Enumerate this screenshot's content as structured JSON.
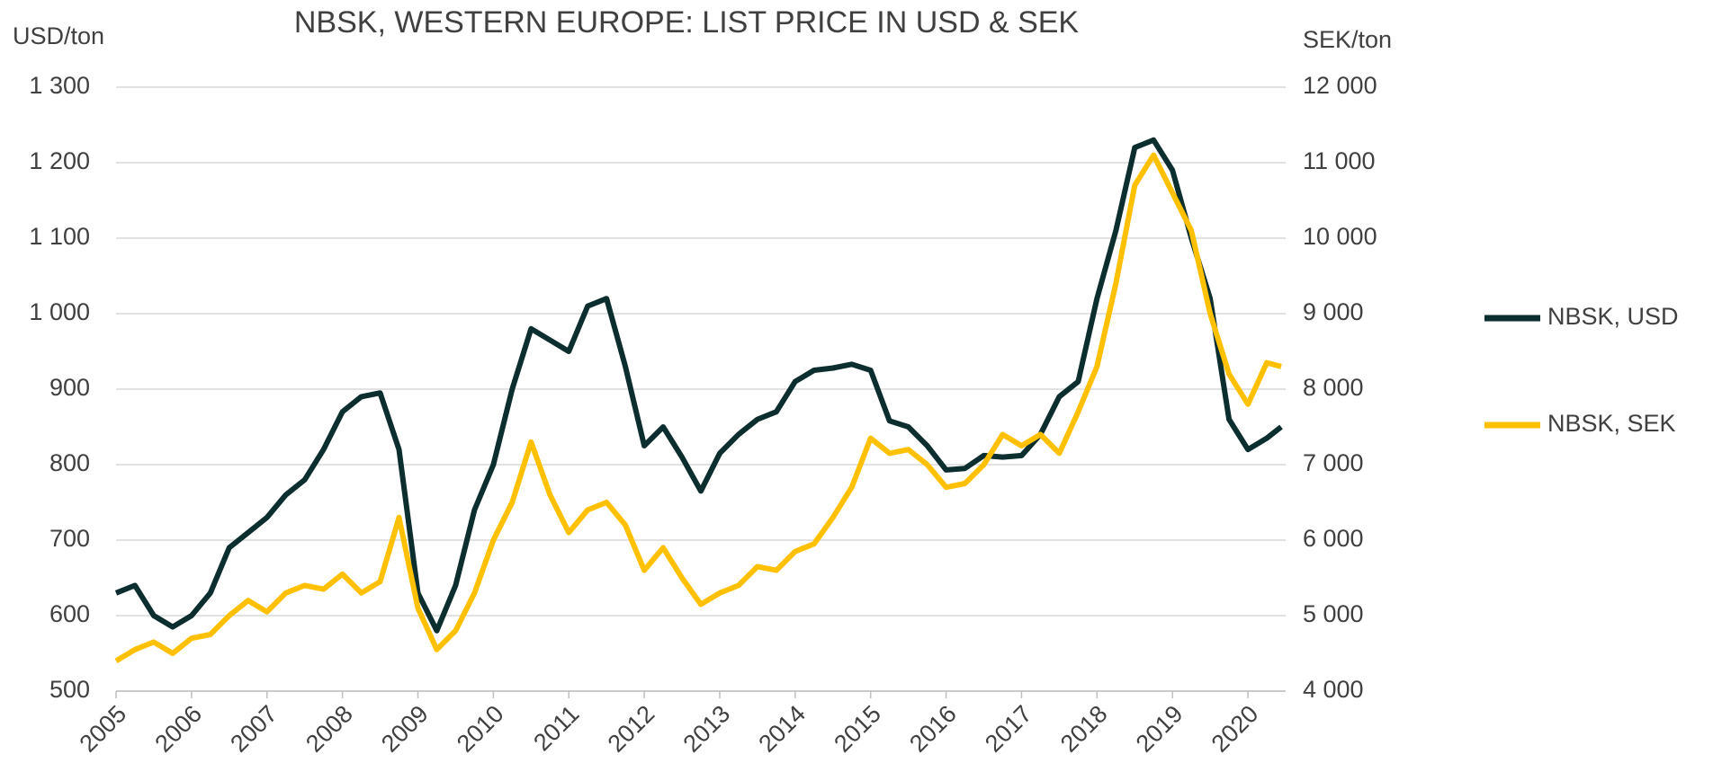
{
  "chart_data": {
    "type": "line",
    "title": "NBSK, WESTERN EUROPE: LIST PRICE IN USD & SEK",
    "y_label": "USD/ton",
    "y2_label": "SEK/ton",
    "x": [
      2005,
      2005.25,
      2005.5,
      2005.75,
      2006,
      2006.25,
      2006.5,
      2006.75,
      2007,
      2007.25,
      2007.5,
      2007.75,
      2008,
      2008.25,
      2008.5,
      2008.75,
      2009,
      2009.25,
      2009.5,
      2009.75,
      2010,
      2010.25,
      2010.5,
      2010.75,
      2011,
      2011.25,
      2011.5,
      2011.75,
      2012,
      2012.25,
      2012.5,
      2012.75,
      2013,
      2013.25,
      2013.5,
      2013.75,
      2014,
      2014.25,
      2014.5,
      2014.75,
      2015,
      2015.25,
      2015.5,
      2015.75,
      2016,
      2016.25,
      2016.5,
      2016.75,
      2017,
      2017.25,
      2017.5,
      2017.75,
      2018,
      2018.25,
      2018.5,
      2018.75,
      2019,
      2019.25,
      2019.5,
      2019.75,
      2020,
      2020.25,
      2020.44
    ],
    "series": [
      {
        "name": "NBSK, USD",
        "color": "#0d2e2e",
        "axis": "y",
        "values": [
          630,
          640,
          600,
          585,
          600,
          630,
          690,
          710,
          730,
          760,
          780,
          820,
          870,
          890,
          895,
          820,
          630,
          580,
          640,
          740,
          800,
          900,
          980,
          965,
          950,
          1010,
          1020,
          930,
          825,
          850,
          810,
          765,
          815,
          840,
          860,
          870,
          910,
          925,
          928,
          933,
          925,
          858,
          850,
          825,
          793,
          795,
          812,
          810,
          812,
          840,
          890,
          910,
          1020,
          1110,
          1220,
          1230,
          1190,
          1100,
          1020,
          860,
          820,
          835,
          850
        ]
      },
      {
        "name": "NBSK, SEK",
        "color": "#ffc000",
        "axis": "y2",
        "values": [
          4400,
          4550,
          4650,
          4500,
          4700,
          4750,
          5000,
          5200,
          5050,
          5300,
          5400,
          5350,
          5550,
          5300,
          5450,
          6300,
          5100,
          4550,
          4800,
          5300,
          6000,
          6500,
          7300,
          6600,
          6100,
          6400,
          6500,
          6200,
          5600,
          5900,
          5500,
          5150,
          5300,
          5400,
          5650,
          5600,
          5850,
          5950,
          6300,
          6700,
          7350,
          7150,
          7200,
          7000,
          6700,
          6750,
          7000,
          7400,
          7250,
          7400,
          7150,
          7700,
          8300,
          9400,
          10700,
          11100,
          10600,
          10100,
          9000,
          8200,
          7800,
          8350,
          8300
        ]
      }
    ],
    "xlim": [
      2005,
      2020.5
    ],
    "xticks": [
      2005,
      2006,
      2007,
      2008,
      2009,
      2010,
      2011,
      2012,
      2013,
      2014,
      2015,
      2016,
      2017,
      2018,
      2019,
      2020
    ],
    "ylim": [
      500,
      1300
    ],
    "yticks": [
      500,
      600,
      700,
      800,
      900,
      {
        "value": 1000,
        "label": "1 000"
      },
      {
        "value": 1100,
        "label": "1 100"
      },
      {
        "value": 1200,
        "label": "1 200"
      },
      {
        "value": 1300,
        "label": "1 300"
      }
    ],
    "y2lim": [
      4000,
      12000
    ],
    "y2ticks": [
      {
        "value": 4000,
        "label": "4 000"
      },
      {
        "value": 5000,
        "label": "5 000"
      },
      {
        "value": 6000,
        "label": "6 000"
      },
      {
        "value": 7000,
        "label": "7 000"
      },
      {
        "value": 8000,
        "label": "8 000"
      },
      {
        "value": 9000,
        "label": "9 000"
      },
      {
        "value": 10000,
        "label": "10 000"
      },
      {
        "value": 11000,
        "label": "11 000"
      },
      {
        "value": 12000,
        "label": "12 000"
      }
    ],
    "grid": true,
    "legend": "right"
  }
}
